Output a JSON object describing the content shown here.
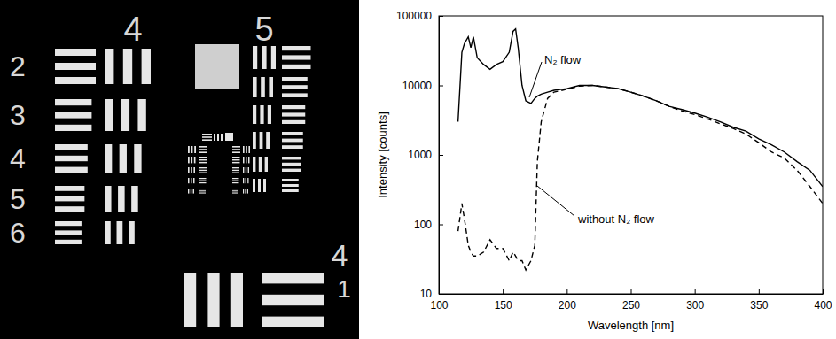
{
  "target": {
    "group_labels": [
      "4",
      "5"
    ],
    "row_labels": [
      "2",
      "3",
      "4",
      "5",
      "6"
    ],
    "corner_labels": [
      "4",
      "1"
    ]
  },
  "chart_data": {
    "type": "line",
    "xlabel": "Wavelength [nm]",
    "ylabel": "Intensity [counts]",
    "log": "y",
    "xlim": [
      100,
      400
    ],
    "xticks": [
      100,
      150,
      200,
      250,
      300,
      350,
      400
    ],
    "ylim": [
      10,
      100000
    ],
    "yticks": [
      10,
      100,
      1000,
      10000,
      100000
    ],
    "x": [
      115,
      118,
      120,
      123,
      125,
      127,
      130,
      135,
      140,
      145,
      150,
      155,
      158,
      160,
      162,
      165,
      168,
      172,
      175,
      177,
      180,
      185,
      190,
      200,
      210,
      220,
      230,
      240,
      250,
      260,
      270,
      280,
      290,
      300,
      310,
      320,
      330,
      340,
      350,
      360,
      370,
      380,
      390,
      400
    ],
    "series": [
      {
        "name": "N₂ flow",
        "color": "#000000",
        "line_style": "solid",
        "values": [
          3000,
          30000,
          40000,
          50000,
          35000,
          50000,
          25000,
          20000,
          17000,
          20000,
          22000,
          30000,
          60000,
          65000,
          35000,
          10000,
          6000,
          5500,
          6500,
          7000,
          7500,
          8000,
          8500,
          9000,
          10000,
          10000,
          9500,
          9000,
          8000,
          7000,
          6000,
          5000,
          4500,
          4000,
          3500,
          3000,
          2500,
          2200,
          1700,
          1400,
          1100,
          800,
          600,
          350
        ]
      },
      {
        "name": "without N₂ flow",
        "color": "#000000",
        "line_style": "dashed",
        "values": [
          80,
          200,
          120,
          50,
          40,
          35,
          35,
          40,
          60,
          45,
          45,
          30,
          40,
          35,
          30,
          30,
          22,
          30,
          50,
          800,
          3000,
          6500,
          8000,
          8800,
          9800,
          10000,
          9500,
          9000,
          8000,
          7000,
          6000,
          5000,
          4300,
          3800,
          3300,
          2800,
          2400,
          2000,
          1500,
          1100,
          900,
          600,
          350,
          200
        ]
      }
    ]
  }
}
